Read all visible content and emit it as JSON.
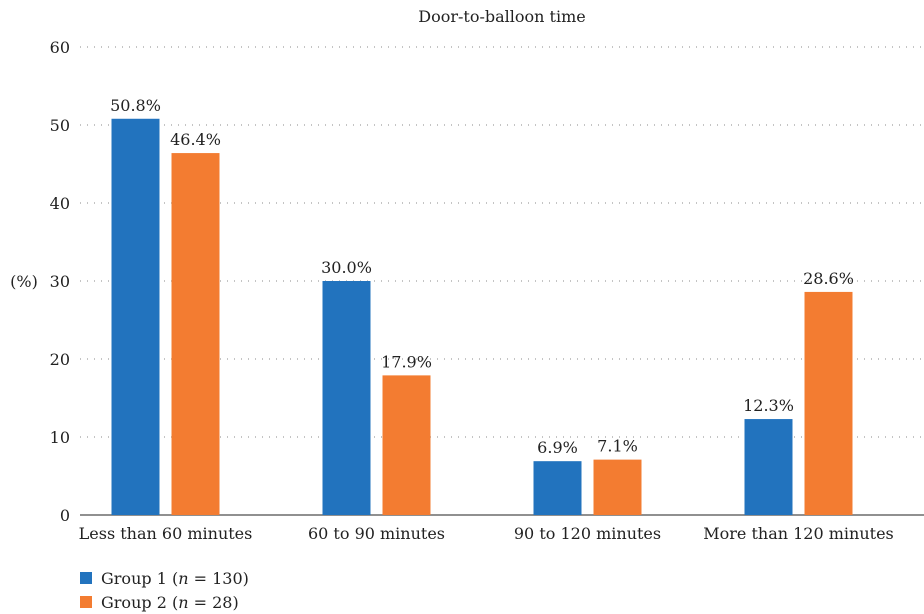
{
  "chart_data": {
    "type": "bar",
    "title": "Door-to-balloon time",
    "ylabel": "(%)",
    "xlabel": "",
    "ylim": [
      0,
      60
    ],
    "yticks": [
      0,
      10,
      20,
      30,
      40,
      50,
      60
    ],
    "grid": true,
    "legend_position": "bottom-left",
    "categories": [
      "Less than 60 minutes",
      "60 to 90 minutes",
      "90 to 120 minutes",
      "More than 120 minutes"
    ],
    "series": [
      {
        "name": "Group 1",
        "name_prefix": "Group 1 (",
        "name_n": "n",
        "name_suffix": " = 130)",
        "color": "#2273be",
        "values": [
          50.8,
          30.0,
          6.9,
          12.3
        ],
        "labels": [
          "50.8%",
          "30.0%",
          "6.9%",
          "12.3%"
        ]
      },
      {
        "name": "Group 2",
        "name_prefix": "Group 2 (",
        "name_n": "n",
        "name_suffix": " = 28)",
        "color": "#f37c31",
        "values": [
          46.4,
          17.9,
          7.1,
          28.6
        ],
        "labels": [
          "46.4%",
          "17.9%",
          "7.1%",
          "28.6%"
        ]
      }
    ]
  }
}
